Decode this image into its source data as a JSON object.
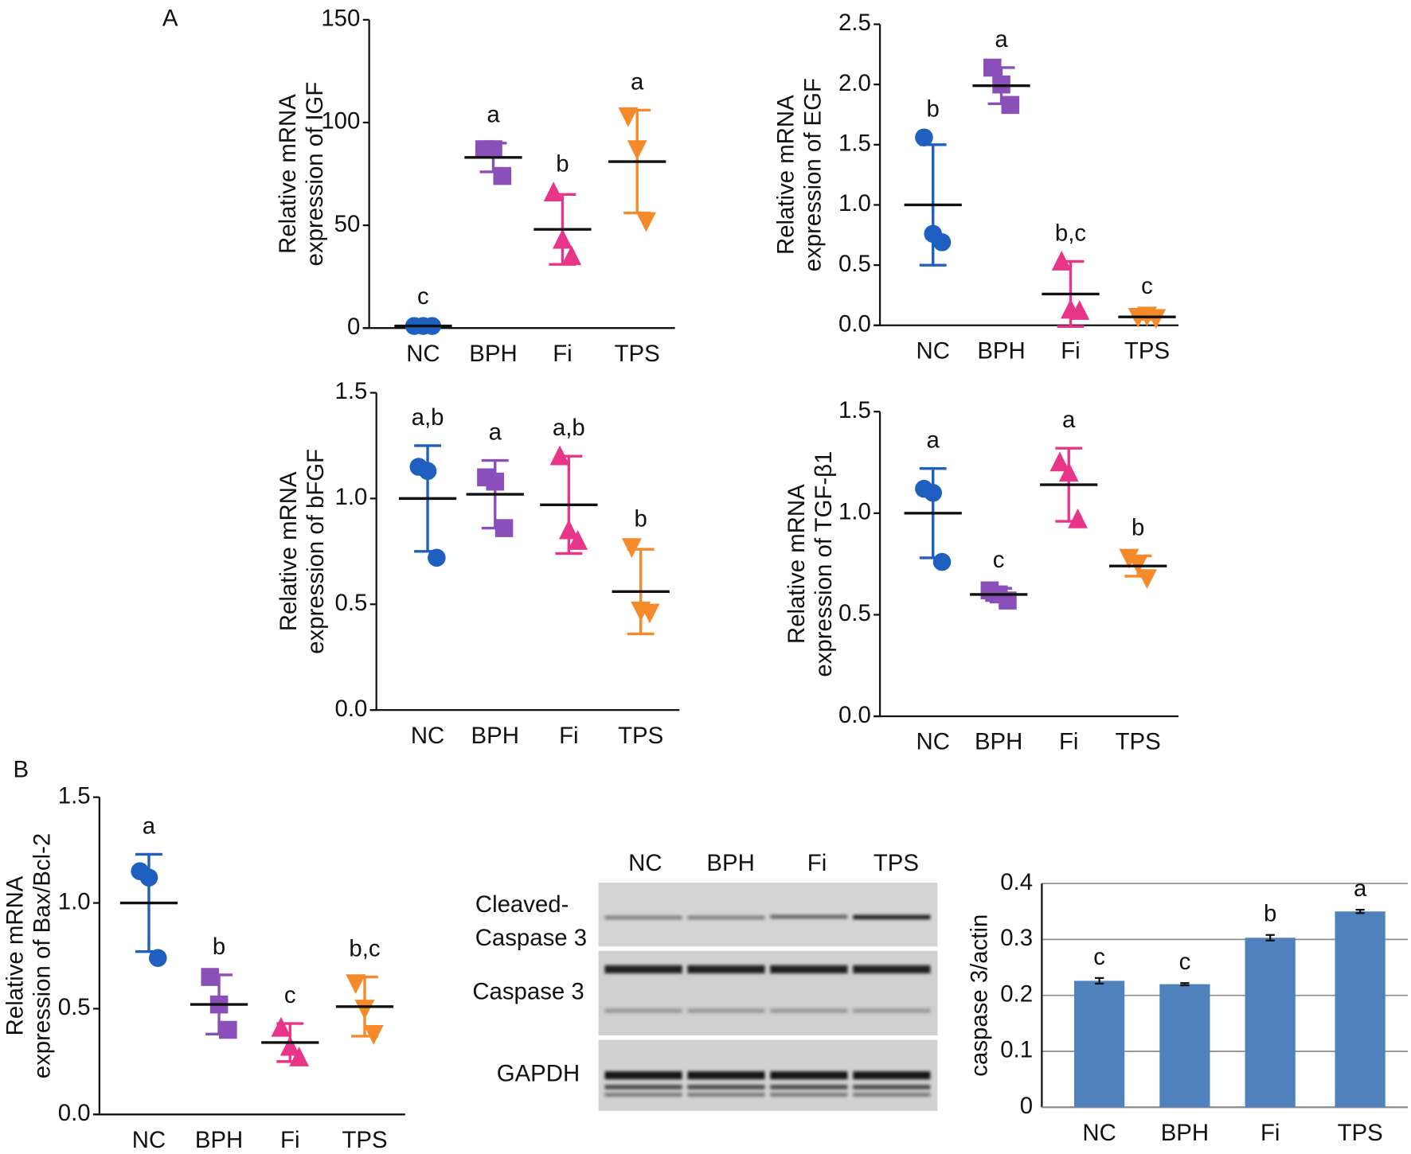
{
  "panel_labels": [
    "A",
    "B"
  ],
  "western_blot": {
    "lanes": [
      "NC",
      "BPH",
      "Fi",
      "TPS"
    ],
    "rows": [
      [
        "Cleaved-",
        "Caspase 3"
      ],
      [
        "Caspase 3"
      ],
      [
        "GAPDH"
      ]
    ]
  },
  "chart_data": [
    {
      "type": "dotplot",
      "ylabel": [
        "Relative mRNA",
        "expression of IGF"
      ],
      "categories": [
        "NC",
        "BPH",
        "Fi",
        "TPS"
      ],
      "ylim": [
        0,
        150
      ],
      "yticks": [
        0,
        50,
        100,
        150
      ],
      "series": [
        {
          "color": "#1f5fbf",
          "marker": "circle",
          "points": [
            1,
            1,
            1
          ],
          "mean": 1,
          "error": 0.5,
          "letter": "c"
        },
        {
          "color": "#8a4fb8",
          "marker": "square",
          "points": [
            87,
            87,
            74
          ],
          "mean": 83,
          "error": 7,
          "letter": "a"
        },
        {
          "color": "#e8358a",
          "marker": "triangle",
          "points": [
            66,
            43,
            35
          ],
          "mean": 48,
          "error": 17,
          "letter": "b"
        },
        {
          "color": "#f58a2a",
          "marker": "triangle-down",
          "points": [
            103,
            87,
            52
          ],
          "mean": 81,
          "error": 25,
          "letter": "a"
        }
      ]
    },
    {
      "type": "dotplot",
      "ylabel": [
        "Relative mRNA",
        "expression of EGF"
      ],
      "categories": [
        "NC",
        "BPH",
        "Fi",
        "TPS"
      ],
      "ylim": [
        0,
        2.5
      ],
      "yticks": [
        {
          "value": 0,
          "label": "0.0"
        },
        0.5,
        {
          "value": 1,
          "label": "1.0"
        },
        1.5,
        {
          "value": 2,
          "label": "2.0"
        },
        2.5
      ],
      "series": [
        {
          "color": "#1f5fbf",
          "marker": "circle",
          "points": [
            1.56,
            0.76,
            0.69
          ],
          "mean": 1.0,
          "error": 0.5,
          "letter": "b"
        },
        {
          "color": "#8a4fb8",
          "marker": "square",
          "points": [
            2.14,
            2.0,
            1.83
          ],
          "mean": 1.99,
          "error": 0.15,
          "letter": "a"
        },
        {
          "color": "#e8358a",
          "marker": "triangle",
          "points": [
            0.53,
            0.13,
            0.12
          ],
          "mean": 0.26,
          "error": 0.27,
          "letter": "b,c"
        },
        {
          "color": "#f58a2a",
          "marker": "triangle-down",
          "points": [
            0.07,
            0.08,
            0.06
          ],
          "mean": 0.07,
          "error": 0.02,
          "letter": "c"
        }
      ]
    },
    {
      "type": "dotplot",
      "ylabel": [
        "Relative mRNA",
        "expression of bFGF"
      ],
      "categories": [
        "NC",
        "BPH",
        "Fi",
        "TPS"
      ],
      "ylim": [
        0,
        1.5
      ],
      "yticks": [
        {
          "value": 0,
          "label": "0.0"
        },
        0.5,
        {
          "value": 1,
          "label": "1.0"
        },
        1.5
      ],
      "series": [
        {
          "color": "#1f5fbf",
          "marker": "circle",
          "points": [
            1.15,
            1.13,
            0.72
          ],
          "mean": 1.0,
          "error": 0.25,
          "letter": "a,b"
        },
        {
          "color": "#8a4fb8",
          "marker": "square",
          "points": [
            1.1,
            1.08,
            0.86
          ],
          "mean": 1.02,
          "error": 0.16,
          "letter": "a"
        },
        {
          "color": "#e8358a",
          "marker": "triangle",
          "points": [
            1.2,
            0.85,
            0.8
          ],
          "mean": 0.97,
          "error": 0.23,
          "letter": "a,b"
        },
        {
          "color": "#f58a2a",
          "marker": "triangle-down",
          "points": [
            0.77,
            0.47,
            0.46
          ],
          "mean": 0.56,
          "error": 0.2,
          "letter": "b"
        }
      ]
    },
    {
      "type": "dotplot",
      "ylabel": [
        "Relative mRNA",
        "expression of TGF-β1"
      ],
      "categories": [
        "NC",
        "BPH",
        "Fi",
        "TPS"
      ],
      "ylim": [
        0,
        1.5
      ],
      "yticks": [
        {
          "value": 0,
          "label": "0.0"
        },
        0.5,
        {
          "value": 1,
          "label": "1.0"
        },
        1.5
      ],
      "series": [
        {
          "color": "#1f5fbf",
          "marker": "circle",
          "points": [
            1.12,
            1.1,
            0.76
          ],
          "mean": 1.0,
          "error": 0.22,
          "letter": "a"
        },
        {
          "color": "#8a4fb8",
          "marker": "square",
          "points": [
            0.62,
            0.6,
            0.57
          ],
          "mean": 0.6,
          "error": 0.03,
          "letter": "c"
        },
        {
          "color": "#e8358a",
          "marker": "triangle",
          "points": [
            1.25,
            1.2,
            0.97
          ],
          "mean": 1.14,
          "error": 0.18,
          "letter": "a"
        },
        {
          "color": "#f58a2a",
          "marker": "triangle-down",
          "points": [
            0.78,
            0.75,
            0.68
          ],
          "mean": 0.74,
          "error": 0.05,
          "letter": "b"
        }
      ]
    },
    {
      "type": "dotplot",
      "ylabel": [
        "Relative mRNA",
        "expression of Bax/Bcl-2"
      ],
      "categories": [
        "NC",
        "BPH",
        "Fi",
        "TPS"
      ],
      "ylim": [
        0,
        1.5
      ],
      "yticks": [
        {
          "value": 0,
          "label": "0.0"
        },
        0.5,
        {
          "value": 1,
          "label": "1.0"
        },
        1.5
      ],
      "series": [
        {
          "color": "#1f5fbf",
          "marker": "circle",
          "points": [
            1.15,
            1.12,
            0.74
          ],
          "mean": 1.0,
          "error": 0.23,
          "letter": "a"
        },
        {
          "color": "#8a4fb8",
          "marker": "square",
          "points": [
            0.65,
            0.52,
            0.4
          ],
          "mean": 0.52,
          "error": 0.14,
          "letter": "b"
        },
        {
          "color": "#e8358a",
          "marker": "triangle",
          "points": [
            0.41,
            0.32,
            0.27
          ],
          "mean": 0.34,
          "error": 0.09,
          "letter": "c"
        },
        {
          "color": "#f58a2a",
          "marker": "triangle-down",
          "points": [
            0.62,
            0.5,
            0.38
          ],
          "mean": 0.51,
          "error": 0.14,
          "letter": "b,c"
        }
      ]
    },
    {
      "type": "bar",
      "ylabel": [
        "caspase 3/actin"
      ],
      "categories": [
        "NC",
        "BPH",
        "Fi",
        "TPS"
      ],
      "values": [
        0.226,
        0.22,
        0.303,
        0.35
      ],
      "errors": [
        0.005,
        0.002,
        0.005,
        0.003
      ],
      "letters": [
        "c",
        "c",
        "b",
        "a"
      ],
      "color": "#4f81bd",
      "ylim": [
        0,
        0.4
      ],
      "yticks": [
        0,
        0.1,
        0.2,
        0.3,
        0.4
      ],
      "grid": true
    }
  ]
}
